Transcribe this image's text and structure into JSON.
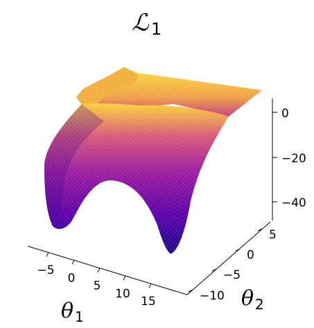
{
  "chart_data": {
    "type": "surface3d",
    "title": "ℒ1",
    "title_main": "ℒ",
    "title_subscript": "1",
    "xlabel": "θ1",
    "xlabel_main": "θ",
    "xlabel_subscript": "1",
    "ylabel": "θ2",
    "ylabel_main": "θ",
    "ylabel_subscript": "2",
    "zlabel": "",
    "x_ticks": [
      "−5",
      "0",
      "5",
      "10",
      "15"
    ],
    "y_ticks": [
      "−10",
      "−5",
      "0",
      "5"
    ],
    "z_ticks": [
      "0",
      "−20",
      "−40"
    ],
    "xlim": [
      -10,
      20
    ],
    "ylim": [
      -12,
      8
    ],
    "zlim": [
      -48,
      6
    ],
    "grid": false,
    "colormap": "plasma",
    "surface_description": "two local minima along theta1 at about -7 and 10, rising to a plateau near 0 for large theta2"
  },
  "colors": {
    "low": "#1a0a8c",
    "mid": "#7a0ab0",
    "high_mid": "#d2567a",
    "high": "#fdd73a"
  }
}
